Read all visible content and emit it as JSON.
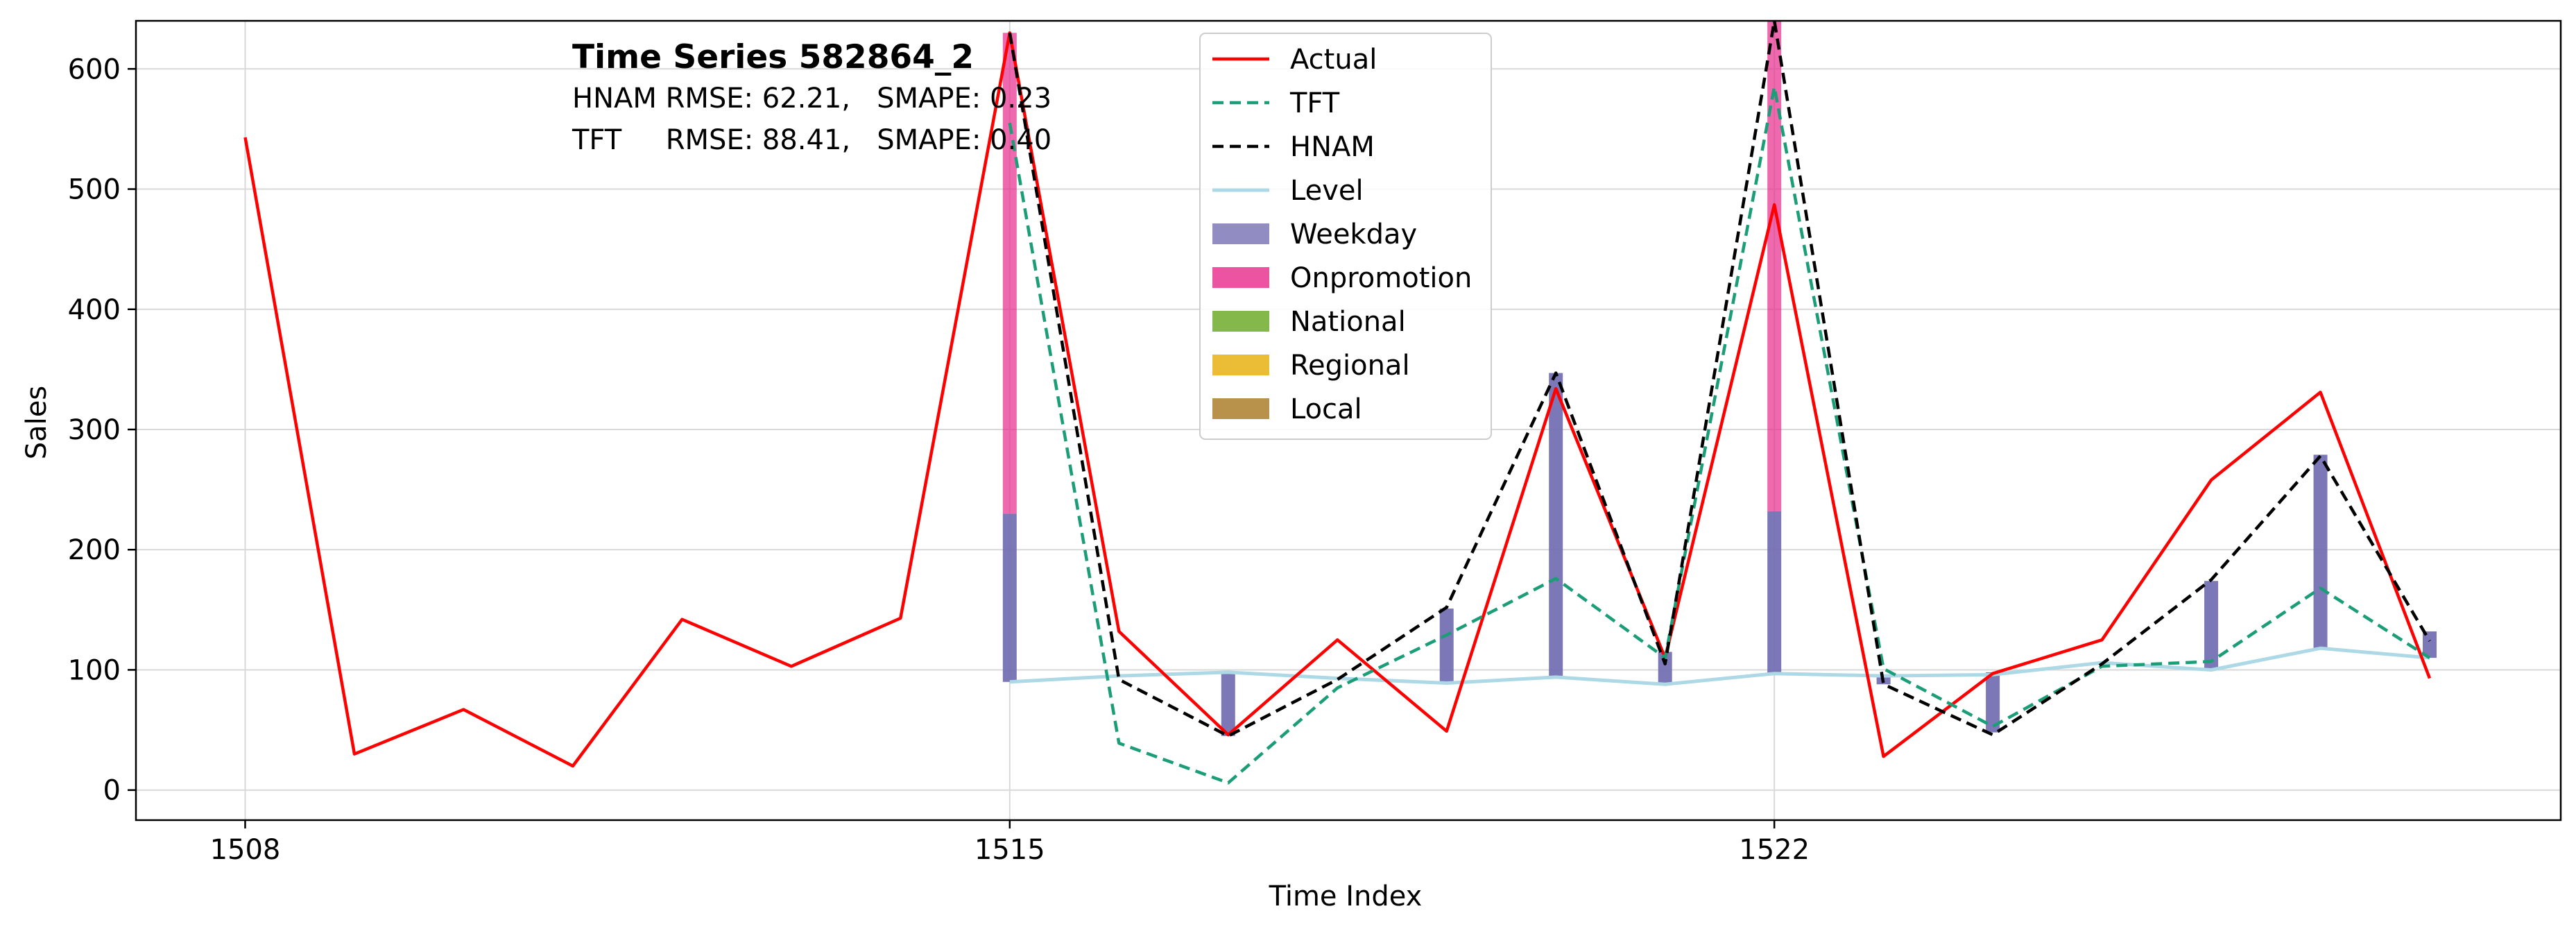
{
  "chart_data": {
    "type": "line",
    "title": "Time Series 582864_2",
    "metrics": [
      "HNAM RMSE: 62.21,   SMAPE: 0.23",
      "TFT     RMSE: 88.41,   SMAPE: 0.40"
    ],
    "xlabel": "Time Index",
    "ylabel": "Sales",
    "xlim": [
      1507,
      1529.2
    ],
    "ylim": [
      -25,
      640
    ],
    "x_ticks": [
      1508,
      1515,
      1522
    ],
    "y_ticks": [
      0,
      100,
      200,
      300,
      400,
      500,
      600
    ],
    "grid": true,
    "legend_position": "top-center",
    "legend": [
      "Actual",
      "TFT",
      "HNAM",
      "Level",
      "Weekday",
      "Onpromotion",
      "National",
      "Regional",
      "Local"
    ],
    "colors": {
      "Actual": "#ff0000",
      "TFT": "#1b9e77",
      "HNAM": "#000000",
      "Level": "#add8e6",
      "Weekday": "#7570b3",
      "Onpromotion": "#e7298a",
      "National": "#66a61e",
      "Regional": "#e6ab02",
      "Local": "#a6761d"
    },
    "series": [
      {
        "name": "Actual",
        "x": [
          1508,
          1509,
          1510,
          1511,
          1512,
          1513,
          1514,
          1515,
          1516,
          1517,
          1518,
          1519,
          1520,
          1521,
          1522,
          1523,
          1524,
          1525,
          1526,
          1527,
          1528
        ],
        "values": [
          543,
          30,
          67,
          20,
          142,
          103,
          143,
          630,
          132,
          46,
          125,
          49,
          334,
          110,
          487,
          28,
          97,
          125,
          258,
          331,
          93
        ],
        "style": "solid"
      },
      {
        "name": "TFT",
        "x": [
          1515,
          1516,
          1517,
          1518,
          1519,
          1520,
          1521,
          1522,
          1523,
          1524,
          1525,
          1526,
          1527,
          1528
        ],
        "values": [
          555,
          39,
          6,
          85,
          129,
          176,
          110,
          585,
          101,
          53,
          103,
          107,
          168,
          110
        ],
        "style": "dashed"
      },
      {
        "name": "HNAM",
        "x": [
          1515,
          1516,
          1517,
          1518,
          1519,
          1520,
          1521,
          1522,
          1523,
          1524,
          1525,
          1526,
          1527,
          1528
        ],
        "values": [
          630,
          92,
          45,
          92,
          152,
          347,
          105,
          640,
          88,
          46,
          105,
          175,
          278,
          124
        ],
        "style": "dashed"
      },
      {
        "name": "Level",
        "x": [
          1515,
          1516,
          1517,
          1518,
          1519,
          1520,
          1521,
          1522,
          1523,
          1524,
          1525,
          1526,
          1527,
          1528
        ],
        "values": [
          90,
          95,
          98,
          93,
          89,
          94,
          88,
          97,
          95,
          96,
          106,
          100,
          118,
          110
        ],
        "style": "solid"
      }
    ],
    "stacked_bars": [
      {
        "x": 1515,
        "base": 90,
        "weekday": 140,
        "onpromotion": 400
      },
      {
        "x": 1517,
        "base": 45,
        "weekday": 52,
        "onpromotion": 0
      },
      {
        "x": 1519,
        "base": 88,
        "weekday": 63,
        "onpromotion": 0
      },
      {
        "x": 1520,
        "base": 94,
        "weekday": 253,
        "onpromotion": 0
      },
      {
        "x": 1521,
        "base": 88,
        "weekday": 27,
        "onpromotion": 0
      },
      {
        "x": 1522,
        "base": 97,
        "weekday": 135,
        "onpromotion": 420
      },
      {
        "x": 1523,
        "base": 88,
        "weekday": 8,
        "onpromotion": 0
      },
      {
        "x": 1524,
        "base": 48,
        "weekday": 50,
        "onpromotion": 0
      },
      {
        "x": 1526,
        "base": 100,
        "weekday": 74,
        "onpromotion": 0
      },
      {
        "x": 1527,
        "base": 118,
        "weekday": 161,
        "onpromotion": 0
      },
      {
        "x": 1528,
        "base": 110,
        "weekday": 22,
        "onpromotion": 0
      }
    ]
  }
}
